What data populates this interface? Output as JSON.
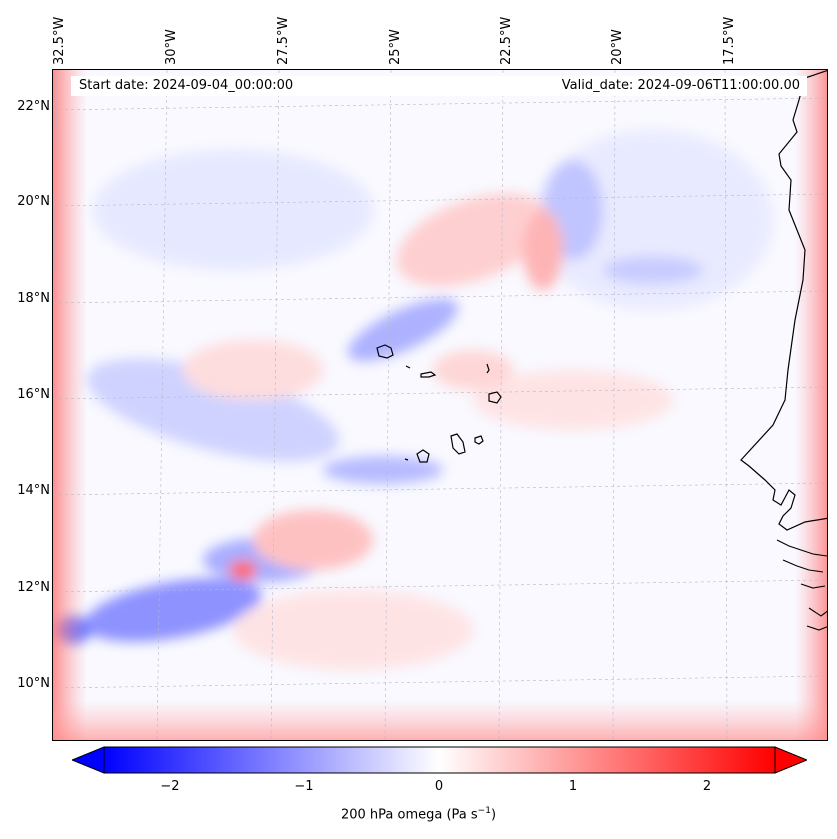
{
  "top_lon_labels": [
    "32.5°W",
    "30°W",
    "27.5°W",
    "25°W",
    "22.5°W",
    "20°W",
    "17.5°W"
  ],
  "lat_labels": [
    "22°N",
    "20°N",
    "18°N",
    "16°N",
    "14°N",
    "12°N",
    "10°N"
  ],
  "header": {
    "start_date": "Start date: 2024-09-04_00:00:00",
    "valid_date": "Valid_date: 2024-09-06T11:00:00.00"
  },
  "colorbar": {
    "tick_labels": [
      "−2",
      "−1",
      "0",
      "1",
      "2"
    ],
    "title": "200 hPa omega (Pa s",
    "title_exp": "−1",
    "title_end": ")",
    "min_color": "#0000ff",
    "mid_color": "#ffffff",
    "max_color": "#ff0000"
  }
}
